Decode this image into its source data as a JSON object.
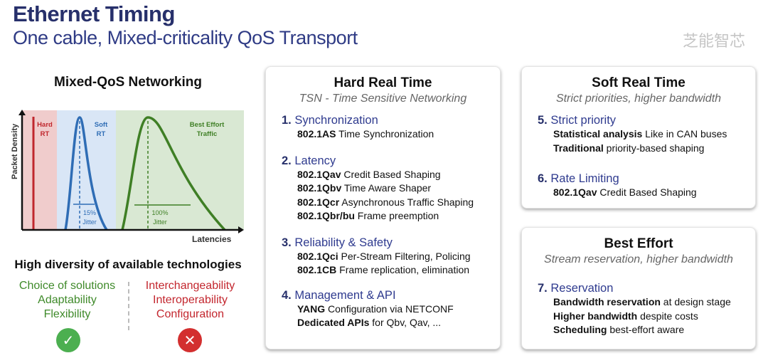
{
  "title": "Ethernet Timing",
  "subtitle": "One cable, Mixed-criticality QoS Transport",
  "left": {
    "heading": "Mixed-QoS Networking",
    "diagram": {
      "y_axis": "Packet Density",
      "x_axis": "Latencies",
      "zones": [
        {
          "label1": "Hard",
          "label2": "RT",
          "color": "#c0272d"
        },
        {
          "label1": "Soft",
          "label2": "RT",
          "color": "#2f6db5"
        },
        {
          "label1": "Best Effort",
          "label2": "Traffic",
          "color": "#3f7f25"
        }
      ],
      "soft_jitter": {
        "pct": "15%",
        "label": "Jitter"
      },
      "be_jitter": {
        "pct": "100%",
        "label": "Jitter"
      }
    },
    "diversity_heading": "High diversity of available technologies",
    "pros": [
      "Choice of solutions",
      "Adaptability",
      "Flexibility"
    ],
    "cons": [
      "Interchangeability",
      "Interoperability",
      "Configuration"
    ],
    "pro_icon": "check-icon",
    "con_icon": "cross-icon",
    "colors": {
      "pro": "#3f8a2a",
      "con": "#c3262e"
    }
  },
  "hard": {
    "title": "Hard Real Time",
    "subtitle": "TSN - Time Sensitive Networking",
    "sections": [
      {
        "num": "1.",
        "name": "Synchronization",
        "items": [
          [
            "802.1AS",
            " Time Synchronization"
          ]
        ]
      },
      {
        "num": "2.",
        "name": "Latency",
        "items": [
          [
            "802.1Qav",
            " Credit Based Shaping"
          ],
          [
            "802.1Qbv",
            " Time Aware Shaper"
          ],
          [
            "802.1Qcr",
            " Asynchronous Traffic Shaping"
          ],
          [
            "802.1Qbr/bu",
            " Frame preemption"
          ]
        ]
      },
      {
        "num": "3.",
        "name": "Reliability & Safety",
        "items": [
          [
            "802.1Qci",
            " Per-Stream Filtering, Policing"
          ],
          [
            "802.1CB",
            " Frame replication, elimination"
          ]
        ]
      },
      {
        "num": "4.",
        "name": "Management & API",
        "items": [
          [
            "YANG",
            " Configuration via NETCONF"
          ],
          [
            "Dedicated APIs",
            " for Qbv, Qav, ..."
          ]
        ]
      }
    ]
  },
  "soft": {
    "title": "Soft Real Time",
    "subtitle": "Strict priorities, higher bandwidth",
    "sections": [
      {
        "num": "5.",
        "name": "Strict priority",
        "items": [
          [
            "Statistical analysis",
            " Like in CAN buses"
          ],
          [
            "Traditional",
            " priority-based shaping"
          ]
        ]
      },
      {
        "num": "6.",
        "name": "Rate Limiting",
        "items": [
          [
            "802.1Qav",
            " Credit Based Shaping"
          ]
        ]
      }
    ]
  },
  "best": {
    "title": "Best Effort",
    "subtitle": "Stream reservation, higher bandwidth",
    "sections": [
      {
        "num": "7.",
        "name": "Reservation",
        "items": [
          [
            "Bandwidth reservation",
            " at design stage"
          ],
          [
            "Higher bandwidth",
            " despite costs"
          ],
          [
            "Scheduling",
            " best-effort aware"
          ]
        ]
      }
    ]
  },
  "watermark": "芝能智芯"
}
